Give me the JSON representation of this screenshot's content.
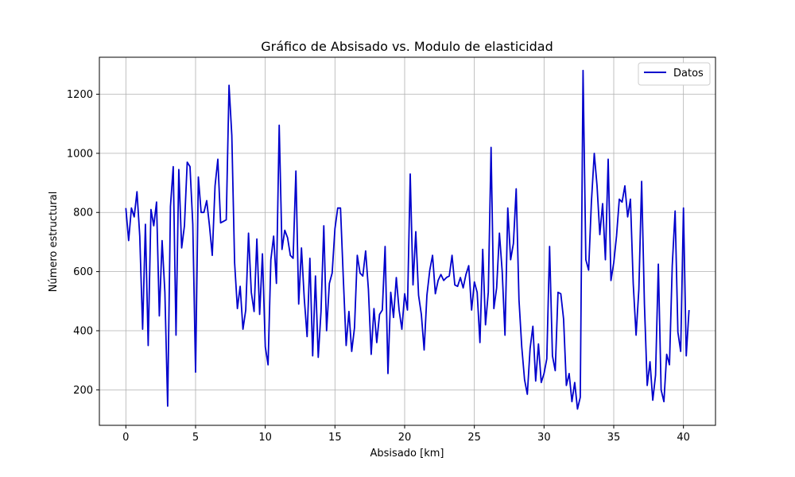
{
  "chart_data": {
    "type": "line",
    "title": "Gráfico de Absisado vs. Modulo de elasticidad",
    "xlabel": "Absisado [km]",
    "ylabel": "Número estructural",
    "xlim": [
      -1.9,
      42.3
    ],
    "ylim": [
      80,
      1325
    ],
    "xticks": [
      0,
      5,
      10,
      15,
      20,
      25,
      30,
      35,
      40
    ],
    "yticks": [
      200,
      400,
      600,
      800,
      1000,
      1200
    ],
    "grid": true,
    "legend_position": "top-right",
    "series": [
      {
        "name": "Datos",
        "color": "#0000cc",
        "x": [
          0.0,
          0.2,
          0.4,
          0.6,
          0.8,
          1.0,
          1.2,
          1.4,
          1.6,
          1.8,
          2.0,
          2.2,
          2.4,
          2.6,
          2.8,
          3.0,
          3.2,
          3.4,
          3.6,
          3.8,
          4.0,
          4.2,
          4.4,
          4.6,
          4.8,
          5.0,
          5.2,
          5.4,
          5.6,
          5.8,
          6.0,
          6.2,
          6.4,
          6.6,
          6.8,
          7.0,
          7.2,
          7.4,
          7.6,
          7.8,
          8.0,
          8.2,
          8.4,
          8.6,
          8.8,
          9.0,
          9.2,
          9.4,
          9.6,
          9.8,
          10.0,
          10.2,
          10.4,
          10.6,
          10.8,
          11.0,
          11.2,
          11.4,
          11.6,
          11.8,
          12.0,
          12.2,
          12.4,
          12.6,
          12.8,
          13.0,
          13.2,
          13.4,
          13.6,
          13.8,
          14.0,
          14.2,
          14.4,
          14.6,
          14.8,
          15.0,
          15.2,
          15.4,
          15.6,
          15.8,
          16.0,
          16.2,
          16.4,
          16.6,
          16.8,
          17.0,
          17.2,
          17.4,
          17.6,
          17.8,
          18.0,
          18.2,
          18.4,
          18.6,
          18.8,
          19.0,
          19.2,
          19.4,
          19.6,
          19.8,
          20.0,
          20.2,
          20.4,
          20.6,
          20.8,
          21.0,
          21.2,
          21.4,
          21.6,
          21.8,
          22.0,
          22.2,
          22.4,
          22.6,
          22.8,
          23.0,
          23.2,
          23.4,
          23.6,
          23.8,
          24.0,
          24.2,
          24.4,
          24.6,
          24.8,
          25.0,
          25.2,
          25.4,
          25.6,
          25.8,
          26.0,
          26.2,
          26.4,
          26.6,
          26.8,
          27.0,
          27.2,
          27.4,
          27.6,
          27.8,
          28.0,
          28.2,
          28.4,
          28.6,
          28.8,
          29.0,
          29.2,
          29.4,
          29.6,
          29.8,
          30.0,
          30.2,
          30.4,
          30.6,
          30.8,
          31.0,
          31.2,
          31.4,
          31.6,
          31.8,
          32.0,
          32.2,
          32.4,
          32.6,
          32.8,
          33.0,
          33.2,
          33.4,
          33.6,
          33.8,
          34.0,
          34.2,
          34.4,
          34.6,
          34.8,
          35.0,
          35.2,
          35.4,
          35.6,
          35.8,
          36.0,
          36.2,
          36.4,
          36.6,
          36.8,
          37.0,
          37.2,
          37.4,
          37.6,
          37.8,
          38.0,
          38.2,
          38.4,
          38.6,
          38.8,
          39.0,
          39.2,
          39.4,
          39.6,
          39.8,
          40.0,
          40.2,
          40.4
        ],
        "y": [
          815,
          705,
          815,
          785,
          870,
          720,
          405,
          760,
          350,
          810,
          755,
          835,
          450,
          705,
          530,
          145,
          820,
          955,
          385,
          945,
          680,
          755,
          970,
          955,
          760,
          260,
          920,
          800,
          800,
          840,
          755,
          655,
          890,
          980,
          765,
          770,
          775,
          1230,
          1060,
          630,
          475,
          550,
          405,
          470,
          730,
          530,
          465,
          710,
          455,
          660,
          345,
          285,
          640,
          720,
          560,
          1095,
          675,
          740,
          715,
          655,
          645,
          940,
          490,
          680,
          510,
          380,
          645,
          315,
          585,
          310,
          465,
          755,
          400,
          560,
          595,
          745,
          815,
          815,
          580,
          350,
          465,
          330,
          410,
          655,
          595,
          585,
          670,
          540,
          320,
          475,
          360,
          455,
          470,
          685,
          255,
          530,
          445,
          580,
          470,
          405,
          525,
          470,
          930,
          555,
          735,
          520,
          455,
          335,
          520,
          605,
          655,
          525,
          570,
          590,
          570,
          580,
          585,
          655,
          555,
          550,
          580,
          545,
          590,
          620,
          470,
          565,
          530,
          360,
          675,
          420,
          530,
          1020,
          475,
          545,
          730,
          600,
          385,
          815,
          640,
          695,
          880,
          505,
          345,
          235,
          185,
          340,
          415,
          230,
          355,
          225,
          255,
          305,
          685,
          315,
          265,
          530,
          525,
          440,
          215,
          255,
          160,
          225,
          135,
          175,
          1280,
          640,
          605,
          835,
          1000,
          890,
          725,
          830,
          640,
          980,
          570,
          630,
          720,
          845,
          835,
          890,
          785,
          845,
          560,
          385,
          540,
          905,
          490,
          215,
          295,
          165,
          250,
          625,
          200,
          160,
          320,
          285,
          620,
          805,
          395,
          330,
          815,
          315,
          470
        ]
      }
    ]
  }
}
